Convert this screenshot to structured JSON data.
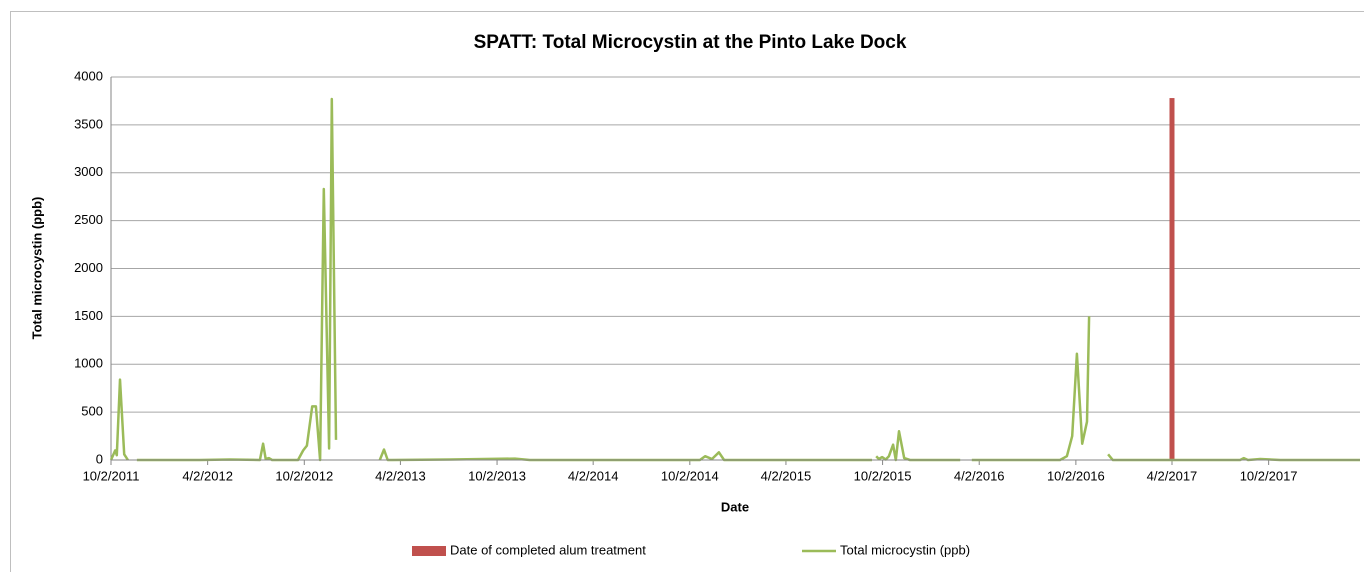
{
  "chart_data": {
    "type": "line",
    "title": "SPATT: Total Microcystin at the Pinto Lake Dock",
    "x_label": "Date",
    "y_label": "Total microcystin (ppb)",
    "xlim": [
      "10/2/2011",
      "3/24/2018"
    ],
    "xticks": [
      "10/2/2011",
      "4/2/2012",
      "10/2/2012",
      "4/2/2013",
      "10/2/2013",
      "4/2/2014",
      "10/2/2014",
      "4/2/2015",
      "10/2/2015",
      "4/2/2016",
      "10/2/2016",
      "4/2/2017",
      "10/2/2017"
    ],
    "ylim": [
      0,
      4000
    ],
    "yticks": [
      0,
      500,
      1000,
      1500,
      2000,
      2500,
      3000,
      3500,
      4000
    ],
    "grid": true,
    "legend": "bottom",
    "series": [
      {
        "name": "Date of completed alum treatment",
        "type": "bar",
        "color": "#c0504d",
        "x": [
          "4/2/2017"
        ],
        "values": [
          3780
        ]
      },
      {
        "name": "Total microcystin (ppb)",
        "type": "line",
        "color": "#9bbb59",
        "x": [
          "10/2/2011",
          "10/10/2011",
          "10/13/2011",
          "10/19/2011",
          "10/27/2011",
          "11/3/2011",
          "11/10/2011",
          "11/20/2011",
          "3/18/2012",
          "5/14/2012",
          "7/10/2012",
          "7/16/2012",
          "7/21/2012",
          "7/27/2012",
          "8/2/2012",
          "9/20/2012",
          "9/30/2012",
          "10/7/2012",
          "10/17/2012",
          "10/24/2012",
          "11/1/2012",
          "11/8/2012",
          "11/18/2012",
          "11/23/2012",
          "12/1/2012",
          "12/10/2012",
          "2/22/2013",
          "3/2/2013",
          "3/9/2013",
          "3/17/2013",
          "7/5/2013",
          "11/5/2013",
          "12/3/2013",
          "10/21/2014",
          "10/31/2014",
          "11/13/2014",
          "11/26/2014",
          "12/6/2014",
          "7/13/2015",
          "9/12/2015",
          "9/16/2015",
          "9/20/2015",
          "9/25/2015",
          "10/1/2015",
          "10/8/2015",
          "10/14/2015",
          "10/22/2015",
          "10/27/2015",
          "11/2/2015",
          "11/12/2015",
          "11/23/2015",
          "2/26/2016",
          "3/8/2016",
          "3/19/2016",
          "9/2/2016",
          "9/15/2016",
          "9/25/2016",
          "10/4/2016",
          "10/14/2016",
          "10/23/2016",
          "10/27/2016",
          "11/20/2016",
          "12/2/2016",
          "12/11/2016",
          "8/9/2017",
          "8/16/2017",
          "8/24/2017",
          "9/16/2017",
          "10/24/2017",
          "3/24/2018"
        ],
        "values": [
          0,
          100,
          50,
          840,
          60,
          0,
          null,
          0,
          0,
          5,
          0,
          170,
          10,
          20,
          0,
          0,
          100,
          150,
          560,
          560,
          0,
          2830,
          120,
          3770,
          210,
          null,
          0,
          110,
          0,
          0,
          5,
          15,
          0,
          0,
          40,
          10,
          80,
          0,
          0,
          0,
          null,
          40,
          10,
          30,
          5,
          40,
          160,
          0,
          300,
          20,
          0,
          0,
          null,
          0,
          0,
          40,
          250,
          1110,
          170,
          400,
          1500,
          null,
          60,
          0,
          0,
          20,
          0,
          10,
          0,
          0
        ]
      }
    ]
  }
}
